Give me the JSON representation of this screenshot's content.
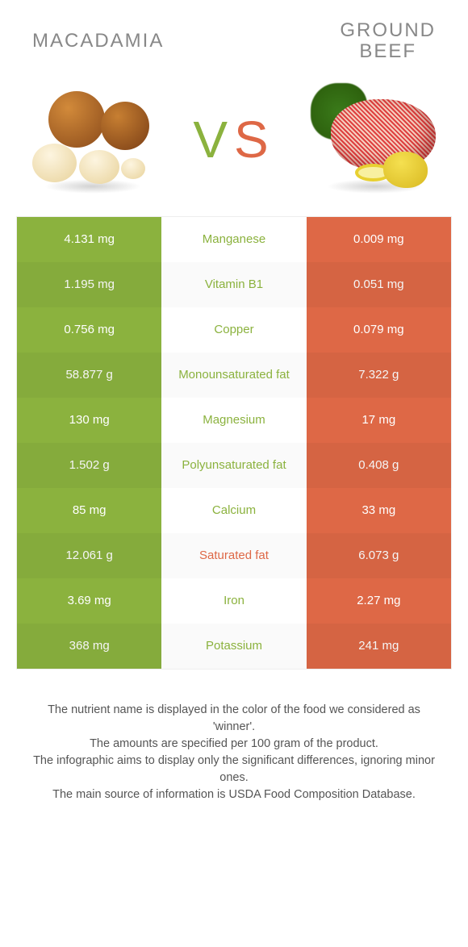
{
  "foods": {
    "left": {
      "name": "Macadamia",
      "color": "#8bb23e"
    },
    "right": {
      "name": "Ground beef",
      "color": "#de6846"
    }
  },
  "vs_label": {
    "v": "V",
    "s": "S"
  },
  "colors": {
    "left": "#8bb23e",
    "right": "#de6846",
    "mid_text_default": "#555555"
  },
  "rows": [
    {
      "nutrient": "Manganese",
      "left": "4.131 mg",
      "right": "0.009 mg",
      "winner": "left"
    },
    {
      "nutrient": "Vitamin B1",
      "left": "1.195 mg",
      "right": "0.051 mg",
      "winner": "left"
    },
    {
      "nutrient": "Copper",
      "left": "0.756 mg",
      "right": "0.079 mg",
      "winner": "left"
    },
    {
      "nutrient": "Monounsaturated fat",
      "left": "58.877 g",
      "right": "7.322 g",
      "winner": "left"
    },
    {
      "nutrient": "Magnesium",
      "left": "130 mg",
      "right": "17 mg",
      "winner": "left"
    },
    {
      "nutrient": "Polyunsaturated fat",
      "left": "1.502 g",
      "right": "0.408 g",
      "winner": "left"
    },
    {
      "nutrient": "Calcium",
      "left": "85 mg",
      "right": "33 mg",
      "winner": "left"
    },
    {
      "nutrient": "Saturated fat",
      "left": "12.061 g",
      "right": "6.073 g",
      "winner": "right"
    },
    {
      "nutrient": "Iron",
      "left": "3.69 mg",
      "right": "2.27 mg",
      "winner": "left"
    },
    {
      "nutrient": "Potassium",
      "left": "368 mg",
      "right": "241 mg",
      "winner": "left"
    }
  ],
  "footer": [
    "The nutrient name is displayed in the color of the food we considered as 'winner'.",
    "The amounts are specified per 100 gram of the product.",
    "The infographic aims to display only the significant differences, ignoring minor ones.",
    "The main source of information is USDA Food Composition Database."
  ]
}
